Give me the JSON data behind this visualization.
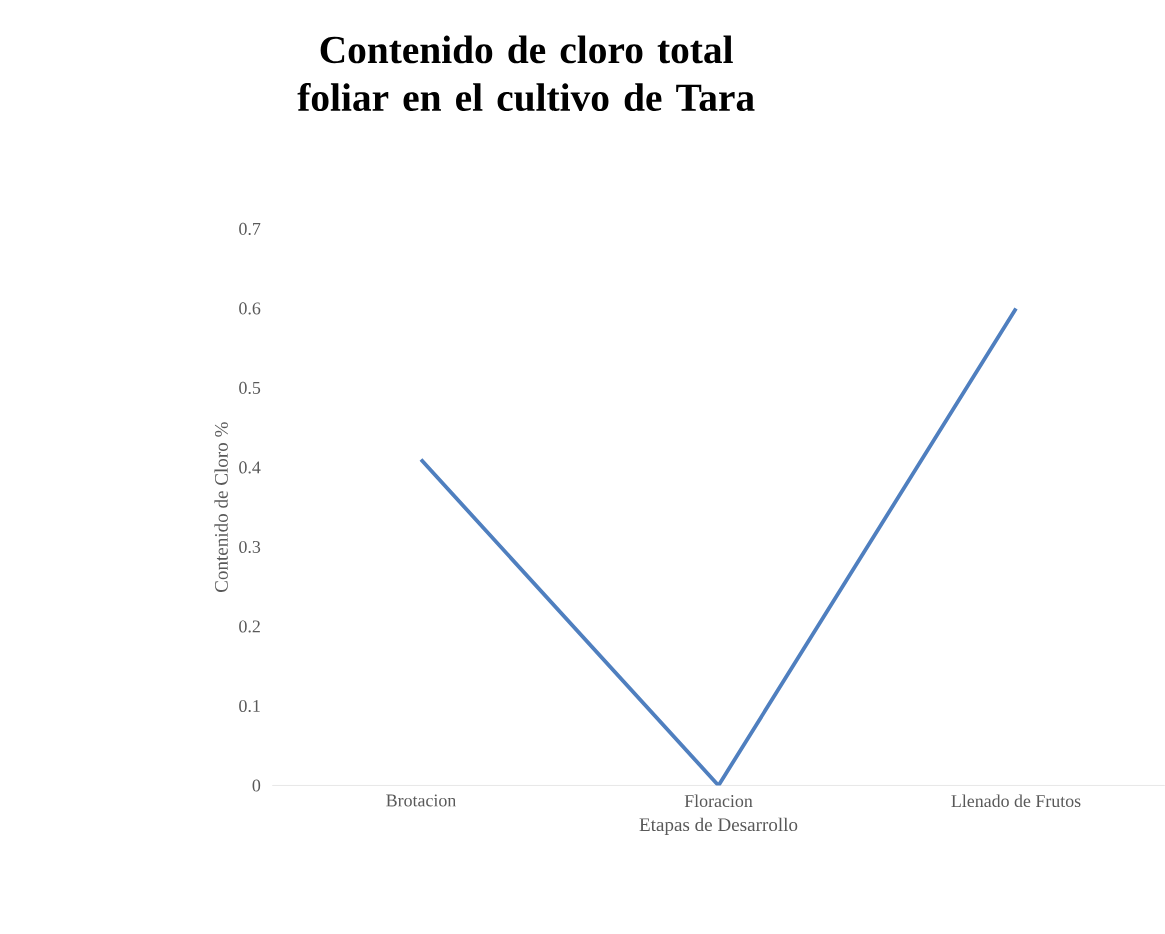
{
  "chart_data": {
    "type": "line",
    "title": "Contenido de cloro total  foliar en el cultivo de Tara",
    "xlabel": "Etapas de Desarrollo",
    "ylabel": "Contenido de Cloro %",
    "categories": [
      "Brotacion",
      "Floracion",
      "Llenado de Frutos"
    ],
    "values": [
      0.41,
      0,
      0.6
    ],
    "color": "#4f7fbf",
    "ylim": [
      0,
      0.7
    ],
    "yticks": [
      0,
      0.1,
      0.2,
      0.3,
      0.4,
      0.5,
      0.6,
      0.7
    ]
  }
}
